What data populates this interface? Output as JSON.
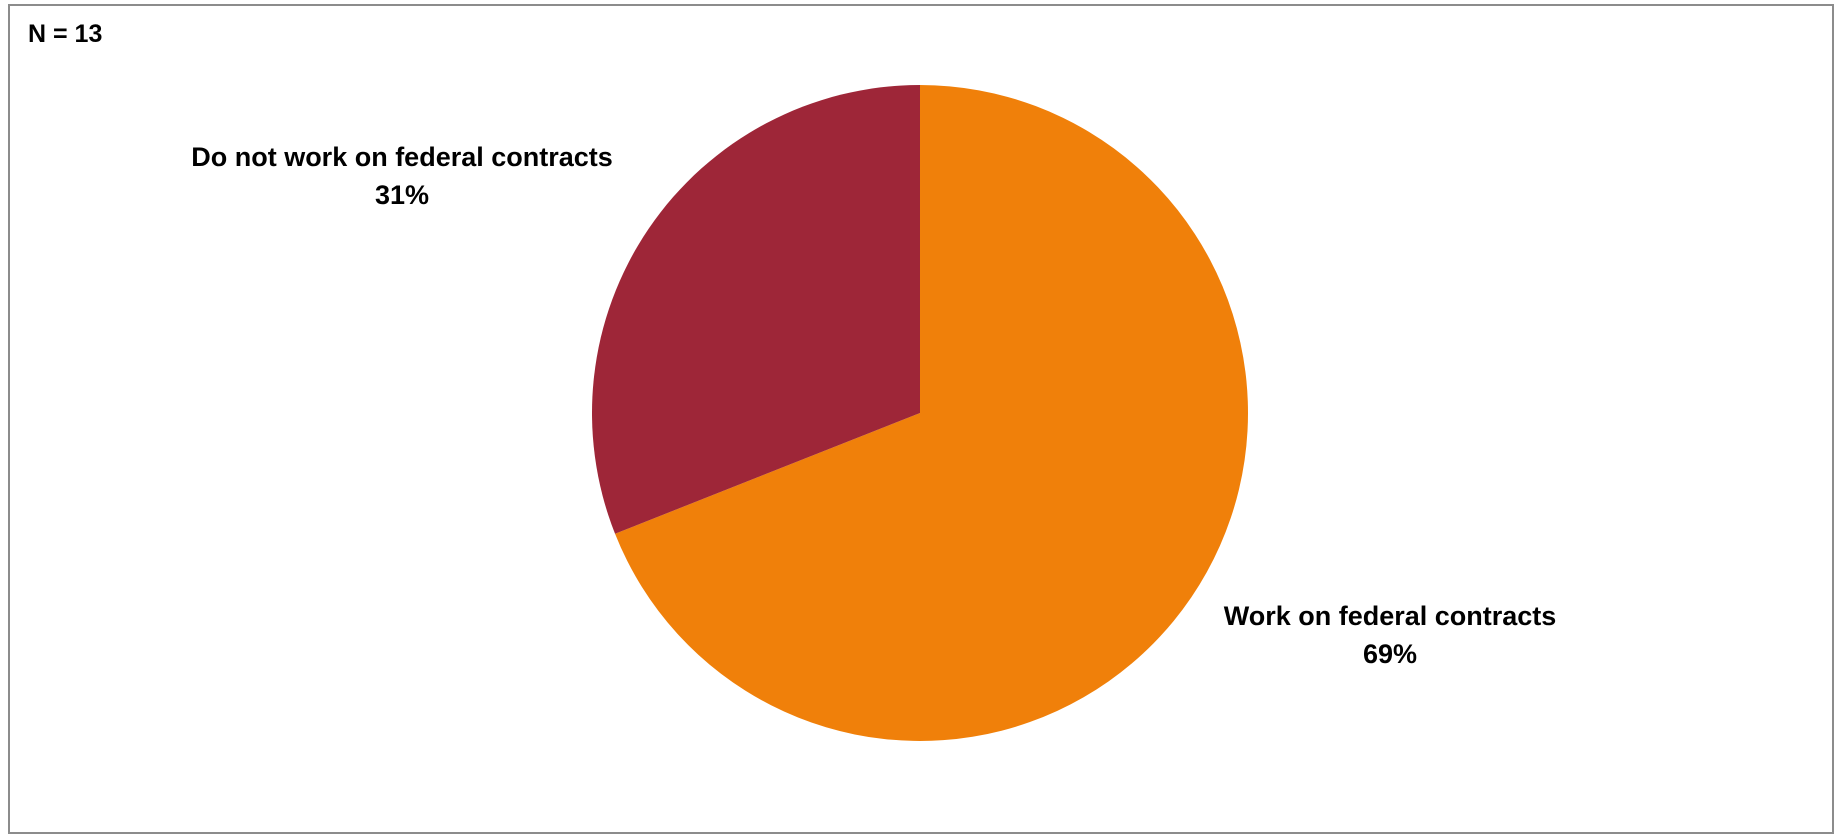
{
  "chart_data": {
    "type": "pie",
    "annotation": "N = 13",
    "slices": [
      {
        "label": "Work on federal contracts",
        "percent_label": "69%",
        "value": 69,
        "color": "#f0800a"
      },
      {
        "label": "Do not work on federal contracts",
        "percent_label": "31%",
        "value": 31,
        "color": "#9e2638"
      }
    ],
    "start_angle_deg": 0,
    "direction": "clockwise",
    "legend": "none"
  }
}
